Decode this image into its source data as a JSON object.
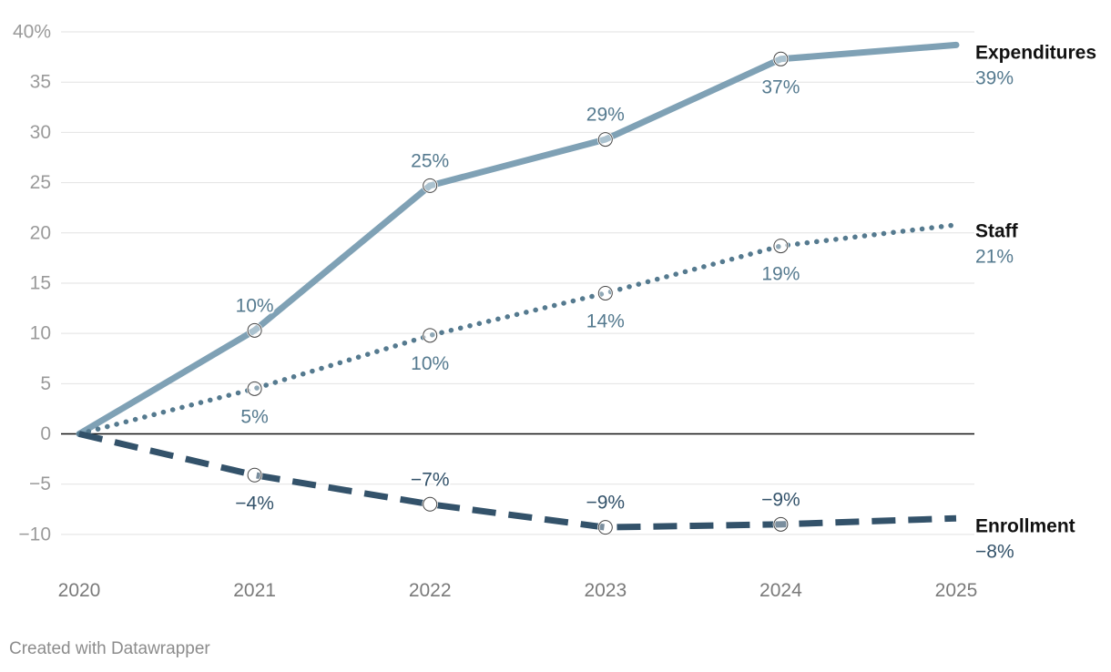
{
  "chart_data": {
    "type": "line",
    "title": "",
    "xlabel": "",
    "ylabel": "",
    "x": [
      "2020",
      "2021",
      "2022",
      "2023",
      "2024",
      "2025"
    ],
    "ylim": [
      -12.5,
      40
    ],
    "yticks": [
      40,
      35,
      30,
      25,
      20,
      15,
      10,
      5,
      0,
      -5,
      -10
    ],
    "ytick_labels": [
      "40%",
      "35",
      "30",
      "25",
      "20",
      "15",
      "10",
      "5",
      "0",
      "−5",
      "−10"
    ],
    "grid": true,
    "series": [
      {
        "name": "Expenditures",
        "values": [
          0,
          10.3,
          24.7,
          29.3,
          37.3,
          38.7
        ],
        "labels": [
          "",
          "10%",
          "25%",
          "29%",
          "37%",
          ""
        ],
        "end_label": "39%",
        "color": "#7fa1b5",
        "style": "solid"
      },
      {
        "name": "Staff",
        "values": [
          0,
          4.5,
          9.8,
          14.0,
          18.7,
          20.8
        ],
        "labels": [
          "",
          "5%",
          "10%",
          "14%",
          "19%",
          ""
        ],
        "end_label": "21%",
        "color": "#557a8f",
        "style": "dotted"
      },
      {
        "name": "Enrollment",
        "values": [
          0,
          -4.1,
          -7.0,
          -9.3,
          -9.0,
          -8.4
        ],
        "labels": [
          "",
          "−4%",
          "−7%",
          "−9%",
          "−9%",
          ""
        ],
        "end_label": "−8%",
        "color": "#33526a",
        "style": "dashed"
      }
    ]
  },
  "footer": {
    "credit": "Created with Datawrapper"
  }
}
